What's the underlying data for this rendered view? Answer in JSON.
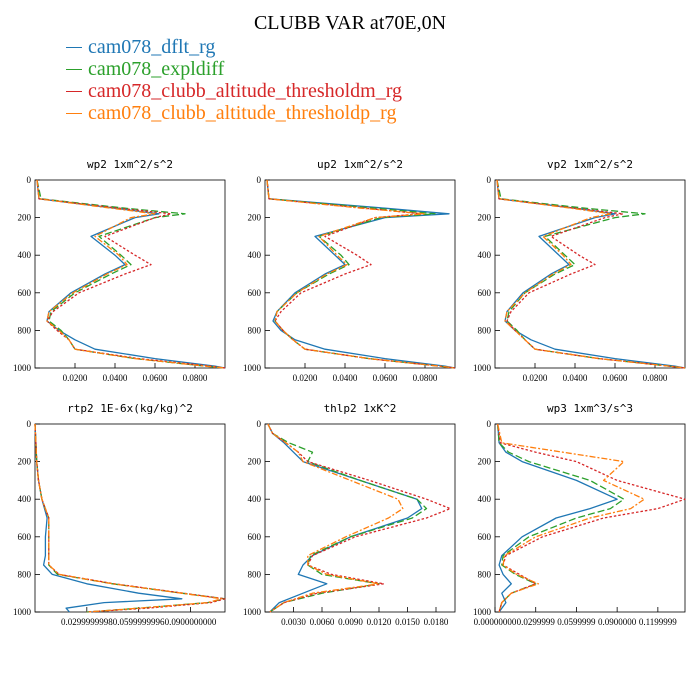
{
  "title": "CLUBB VAR at70E,0N",
  "legend": [
    {
      "label": "cam078_dflt_rg",
      "color": "#1f77b4"
    },
    {
      "label": "cam078_expldiff",
      "color": "#2ca02c"
    },
    {
      "label": "cam078_clubb_altitude_thresholdm_rg",
      "color": "#d62728"
    },
    {
      "label": "cam078_clubb_altitude_thresholdp_rg",
      "color": "#ff7f0e"
    }
  ],
  "chart_data": [
    {
      "type": "line",
      "title": "wp2   1xm^2/s^2",
      "ylim": [
        1000,
        0
      ],
      "yticks": [
        "0",
        "200",
        "400",
        "600",
        "800",
        "1000"
      ],
      "xlim": [
        0,
        0.095
      ],
      "xticks": [
        0.02,
        0.04,
        0.06,
        0.08
      ],
      "xtick_labels": [
        "0.0200",
        "0.0400",
        "0.0600",
        "0.0800"
      ],
      "y": [
        0,
        100,
        150,
        180,
        200,
        300,
        400,
        450,
        500,
        600,
        700,
        750,
        800,
        850,
        900,
        950,
        990,
        1000
      ],
      "series": [
        {
          "name": "cam078_dflt_rg",
          "values": [
            0.001,
            0.002,
            0.04,
            0.062,
            0.05,
            0.028,
            0.04,
            0.045,
            0.035,
            0.018,
            0.007,
            0.006,
            0.012,
            0.02,
            0.03,
            0.06,
            0.09,
            0.095
          ]
        },
        {
          "name": "cam078_expldiff",
          "values": [
            0.001,
            0.003,
            0.045,
            0.075,
            0.06,
            0.032,
            0.043,
            0.048,
            0.038,
            0.02,
            0.008,
            0.007,
            0.013,
            0.017,
            0.02,
            0.05,
            0.085,
            0.095
          ]
        },
        {
          "name": "cam078_clubb_altitude_thresholdm_rg",
          "values": [
            0.001,
            0.002,
            0.042,
            0.068,
            0.06,
            0.035,
            0.05,
            0.058,
            0.045,
            0.022,
            0.009,
            0.006,
            0.011,
            0.017,
            0.02,
            0.052,
            0.088,
            0.095
          ]
        },
        {
          "name": "cam078_clubb_altitude_thresholdp_rg",
          "values": [
            0.001,
            0.002,
            0.038,
            0.06,
            0.048,
            0.03,
            0.042,
            0.046,
            0.036,
            0.019,
            0.007,
            0.006,
            0.012,
            0.017,
            0.02,
            0.05,
            0.085,
            0.095
          ]
        }
      ]
    },
    {
      "type": "line",
      "title": "up2   1xm^2/s^2",
      "ylim": [
        1000,
        0
      ],
      "yticks": [
        "0",
        "200",
        "400",
        "600",
        "800",
        "1000"
      ],
      "xlim": [
        0,
        0.095
      ],
      "xticks": [
        0.02,
        0.04,
        0.06,
        0.08
      ],
      "xtick_labels": [
        "0.0200",
        "0.0400",
        "0.0600",
        "0.0800"
      ],
      "y": [
        0,
        100,
        150,
        180,
        200,
        300,
        400,
        450,
        500,
        600,
        700,
        750,
        800,
        850,
        900,
        950,
        990,
        1000
      ],
      "series": [
        {
          "name": "cam078_dflt_rg",
          "values": [
            0.001,
            0.002,
            0.06,
            0.092,
            0.06,
            0.025,
            0.035,
            0.04,
            0.03,
            0.015,
            0.006,
            0.004,
            0.008,
            0.015,
            0.03,
            0.06,
            0.09,
            0.095
          ]
        },
        {
          "name": "cam078_expldiff",
          "values": [
            0.001,
            0.002,
            0.055,
            0.085,
            0.058,
            0.027,
            0.038,
            0.042,
            0.032,
            0.016,
            0.006,
            0.005,
            0.009,
            0.014,
            0.02,
            0.052,
            0.087,
            0.095
          ]
        },
        {
          "name": "cam078_clubb_altitude_thresholdm_rg",
          "values": [
            0.001,
            0.002,
            0.05,
            0.078,
            0.055,
            0.03,
            0.046,
            0.053,
            0.04,
            0.018,
            0.008,
            0.005,
            0.009,
            0.014,
            0.02,
            0.052,
            0.087,
            0.095
          ]
        },
        {
          "name": "cam078_clubb_altitude_thresholdp_rg",
          "values": [
            0.001,
            0.002,
            0.048,
            0.08,
            0.055,
            0.027,
            0.036,
            0.041,
            0.031,
            0.016,
            0.006,
            0.005,
            0.009,
            0.014,
            0.02,
            0.052,
            0.087,
            0.095
          ]
        }
      ]
    },
    {
      "type": "line",
      "title": "vp2   1xm^2/s^2",
      "ylim": [
        1000,
        0
      ],
      "yticks": [
        "0",
        "200",
        "400",
        "600",
        "800",
        "1000"
      ],
      "xlim": [
        0,
        0.095
      ],
      "xticks": [
        0.02,
        0.04,
        0.06,
        0.08
      ],
      "xtick_labels": [
        "0.0200",
        "0.0400",
        "0.0600",
        "0.0800"
      ],
      "y": [
        0,
        100,
        150,
        180,
        200,
        300,
        400,
        450,
        500,
        600,
        700,
        750,
        800,
        850,
        900,
        950,
        990,
        1000
      ],
      "series": [
        {
          "name": "cam078_dflt_rg",
          "values": [
            0.001,
            0.002,
            0.04,
            0.06,
            0.05,
            0.022,
            0.032,
            0.037,
            0.028,
            0.014,
            0.006,
            0.005,
            0.01,
            0.018,
            0.03,
            0.06,
            0.09,
            0.095
          ]
        },
        {
          "name": "cam078_expldiff",
          "values": [
            0.001,
            0.003,
            0.045,
            0.075,
            0.06,
            0.025,
            0.035,
            0.04,
            0.03,
            0.015,
            0.007,
            0.006,
            0.011,
            0.015,
            0.02,
            0.052,
            0.087,
            0.095
          ]
        },
        {
          "name": "cam078_clubb_altitude_thresholdm_rg",
          "values": [
            0.001,
            0.002,
            0.04,
            0.064,
            0.055,
            0.028,
            0.042,
            0.05,
            0.038,
            0.017,
            0.008,
            0.006,
            0.01,
            0.015,
            0.02,
            0.052,
            0.087,
            0.095
          ]
        },
        {
          "name": "cam078_clubb_altitude_thresholdp_rg",
          "values": [
            0.001,
            0.002,
            0.038,
            0.058,
            0.048,
            0.024,
            0.034,
            0.038,
            0.029,
            0.015,
            0.006,
            0.005,
            0.01,
            0.015,
            0.02,
            0.052,
            0.087,
            0.095
          ]
        }
      ]
    },
    {
      "type": "line",
      "title": "rtp2   1E-6x(kg/kg)^2",
      "ylim": [
        1000,
        0
      ],
      "yticks": [
        "0",
        "200",
        "400",
        "600",
        "800",
        "1000"
      ],
      "xlim": [
        0,
        0.11
      ],
      "xticks": [
        0.03,
        0.06,
        0.09
      ],
      "xtick_labels": [
        "0.0299999998",
        "0.0599999996",
        "0.0900000000"
      ],
      "y": [
        0,
        100,
        200,
        300,
        400,
        500,
        600,
        700,
        750,
        800,
        850,
        900,
        930,
        950,
        980,
        1000
      ],
      "series": [
        {
          "name": "cam078_dflt_rg",
          "values": [
            0,
            0.0005,
            0.001,
            0.002,
            0.004,
            0.007,
            0.006,
            0.006,
            0.005,
            0.01,
            0.03,
            0.06,
            0.085,
            0.04,
            0.018,
            0.02
          ]
        },
        {
          "name": "cam078_expldiff",
          "values": [
            0,
            0.0005,
            0.001,
            0.002,
            0.004,
            0.008,
            0.008,
            0.008,
            0.008,
            0.013,
            0.045,
            0.085,
            0.11,
            0.1,
            0.06,
            0.03
          ]
        },
        {
          "name": "cam078_clubb_altitude_thresholdm_rg",
          "values": [
            0,
            0.0005,
            0.001,
            0.002,
            0.004,
            0.008,
            0.008,
            0.008,
            0.008,
            0.014,
            0.046,
            0.086,
            0.11,
            0.102,
            0.065,
            0.03
          ]
        },
        {
          "name": "cam078_clubb_altitude_thresholdp_rg",
          "values": [
            0,
            0.0005,
            0.001,
            0.002,
            0.004,
            0.008,
            0.008,
            0.008,
            0.008,
            0.014,
            0.045,
            0.085,
            0.108,
            0.1,
            0.06,
            0.03
          ]
        }
      ]
    },
    {
      "type": "line",
      "title": "thlp2   1xK^2",
      "ylim": [
        1000,
        0
      ],
      "yticks": [
        "0",
        "200",
        "400",
        "600",
        "800",
        "1000"
      ],
      "xlim": [
        0,
        0.02
      ],
      "xticks": [
        0.003,
        0.006,
        0.009,
        0.012,
        0.015,
        0.018
      ],
      "xtick_labels": [
        "0.0030",
        "0.0060",
        "0.0090",
        "0.0120",
        "0.0150",
        "0.0180"
      ],
      "y": [
        0,
        50,
        100,
        150,
        200,
        300,
        400,
        450,
        500,
        600,
        700,
        750,
        800,
        850,
        900,
        950,
        1000
      ],
      "series": [
        {
          "name": "cam078_dflt_rg",
          "values": [
            0.0003,
            0.0008,
            0.002,
            0.003,
            0.004,
            0.01,
            0.016,
            0.0165,
            0.015,
            0.009,
            0.005,
            0.004,
            0.0035,
            0.0065,
            0.004,
            0.0015,
            0.0005
          ]
        },
        {
          "name": "cam078_expldiff",
          "values": [
            0.0003,
            0.0008,
            0.0025,
            0.005,
            0.0045,
            0.01,
            0.016,
            0.017,
            0.0155,
            0.009,
            0.0048,
            0.0045,
            0.006,
            0.012,
            0.006,
            0.002,
            0.0005
          ]
        },
        {
          "name": "cam078_clubb_altitude_thresholdm_rg",
          "values": [
            0.0003,
            0.0008,
            0.0022,
            0.0035,
            0.0045,
            0.011,
            0.017,
            0.0195,
            0.017,
            0.0095,
            0.005,
            0.0045,
            0.007,
            0.0125,
            0.0055,
            0.002,
            0.0005
          ]
        },
        {
          "name": "cam078_clubb_altitude_thresholdp_rg",
          "values": [
            0.0003,
            0.0008,
            0.0022,
            0.0035,
            0.004,
            0.009,
            0.014,
            0.0145,
            0.013,
            0.0085,
            0.0045,
            0.0045,
            0.0065,
            0.012,
            0.005,
            0.002,
            0.0005
          ]
        }
      ]
    },
    {
      "type": "line",
      "title": "wp3   1xm^3/s^3",
      "ylim": [
        1000,
        0
      ],
      "yticks": [
        "0",
        "200",
        "400",
        "600",
        "800",
        "1000"
      ],
      "xlim": [
        0,
        0.14
      ],
      "xticks": [
        0.0,
        0.03,
        0.06,
        0.09,
        0.12
      ],
      "xtick_labels": [
        "0.00000000",
        "0.0299999",
        "0.0599999",
        "0.0900000",
        "0.1199999"
      ],
      "y": [
        0,
        100,
        150,
        200,
        300,
        400,
        450,
        500,
        600,
        700,
        750,
        800,
        850,
        900,
        950,
        1000
      ],
      "series": [
        {
          "name": "cam078_dflt_rg",
          "values": [
            0.002,
            0.003,
            0.008,
            0.02,
            0.06,
            0.09,
            0.07,
            0.045,
            0.02,
            0.005,
            0.003,
            0.006,
            0.012,
            0.005,
            0.008,
            0.003
          ]
        },
        {
          "name": "cam078_expldiff",
          "values": [
            0.002,
            0.003,
            0.01,
            0.025,
            0.07,
            0.095,
            0.085,
            0.06,
            0.025,
            0.006,
            0.005,
            0.015,
            0.03,
            0.012,
            0.005,
            0.003
          ]
        },
        {
          "name": "cam078_clubb_altitude_thresholdm_rg",
          "values": [
            0.002,
            0.004,
            0.03,
            0.06,
            0.09,
            0.14,
            0.12,
            0.08,
            0.035,
            0.008,
            0.006,
            0.018,
            0.03,
            0.012,
            0.005,
            0.003
          ]
        },
        {
          "name": "cam078_clubb_altitude_thresholdp_rg",
          "values": [
            0.002,
            0.005,
            0.05,
            0.095,
            0.08,
            0.11,
            0.1,
            0.07,
            0.03,
            0.007,
            0.006,
            0.016,
            0.032,
            0.012,
            0.005,
            0.003
          ]
        }
      ]
    }
  ]
}
